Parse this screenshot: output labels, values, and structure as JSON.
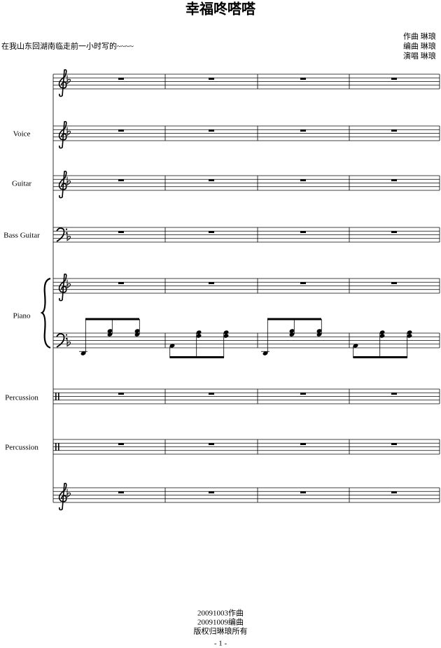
{
  "header": {
    "title": "幸福咚嗒嗒",
    "note": "在我山东回湖南临走前一小时写的~~~~",
    "credits": [
      "作曲 琳琅",
      "编曲 琳琅",
      "演唱 琳琅"
    ]
  },
  "instruments": [
    "Voice",
    "Guitar",
    "Bass Guitar",
    "Piano",
    "Percussion",
    "Percussion"
  ],
  "footer": [
    "20091003作曲",
    "20091009编曲",
    "版权归琳琅所有"
  ],
  "page_number": "- 1 -"
}
